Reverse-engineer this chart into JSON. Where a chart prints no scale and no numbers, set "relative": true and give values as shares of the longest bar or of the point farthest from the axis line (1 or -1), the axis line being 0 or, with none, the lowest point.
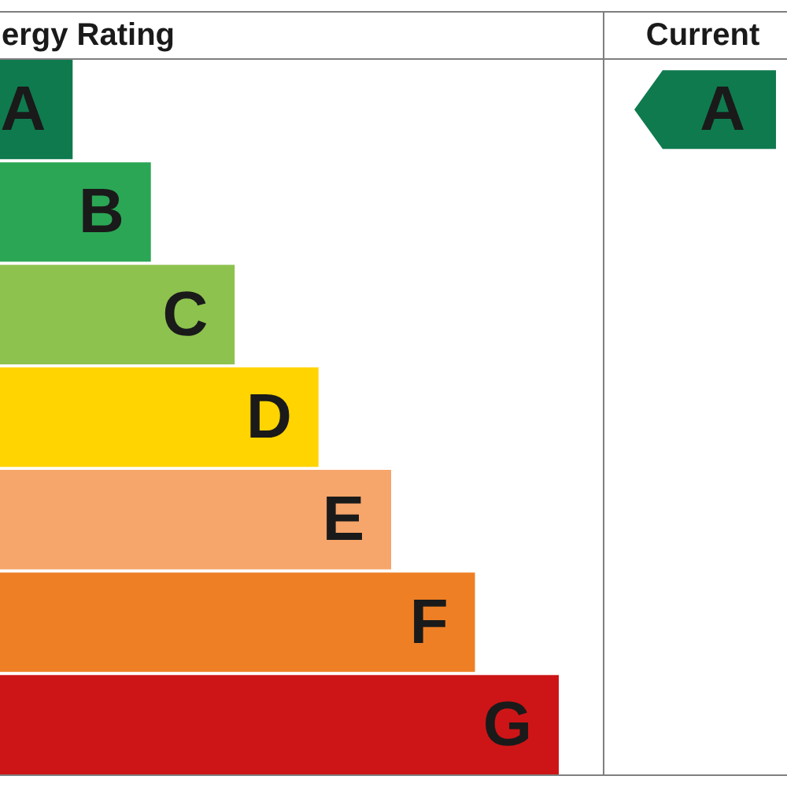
{
  "chart_data": {
    "type": "bar",
    "orientation": "horizontal",
    "relative": true,
    "title": "ergy Rating",
    "categories": [
      "A",
      "B",
      "C",
      "D",
      "E",
      "F",
      "G"
    ],
    "values": [
      0.13,
      0.27,
      0.42,
      0.57,
      0.7,
      0.85,
      1
    ],
    "colors": [
      "#0f7a4e",
      "#2ba655",
      "#8dc24e",
      "#ffd400",
      "#f6a56b",
      "#ee7f25",
      "#cd1517"
    ],
    "annotations": [
      "Current",
      "A"
    ]
  }
}
